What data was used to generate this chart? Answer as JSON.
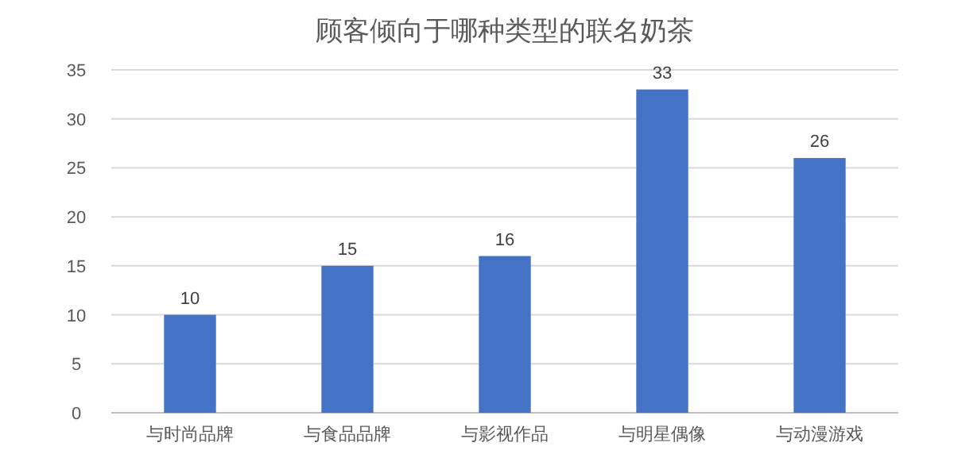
{
  "chart_data": {
    "type": "bar",
    "title": "顾客倾向于哪种类型的联名奶茶",
    "categories": [
      "与时尚品牌",
      "与食品品牌",
      "与影视作品",
      "与明星偶像",
      "与动漫游戏"
    ],
    "values": [
      10,
      15,
      16,
      33,
      26
    ],
    "color": "#4472c4",
    "ylim": [
      0,
      35
    ],
    "yticks": [
      0,
      5,
      10,
      15,
      20,
      25,
      30,
      35
    ],
    "grid": "y",
    "data_labels": true
  }
}
